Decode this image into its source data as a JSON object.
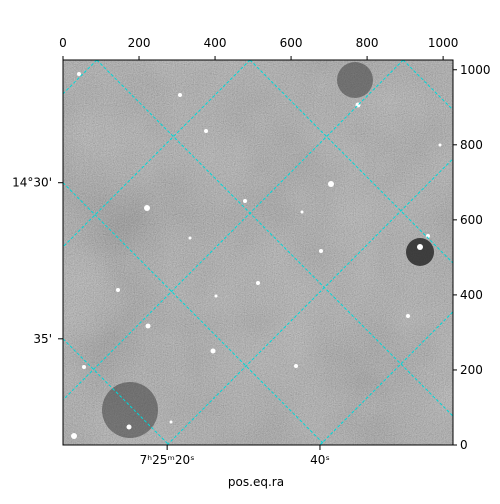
{
  "chart_data": {
    "type": "image",
    "xlabel": "pos.eq.ra",
    "xlim": [
      0,
      1026
    ],
    "ylim": [
      0,
      1026
    ],
    "xticks": [
      0,
      200,
      400,
      600,
      800,
      1000
    ],
    "yticks": [
      0,
      200,
      400,
      600,
      800,
      1000
    ],
    "grid_color": "#00d8d8",
    "ra_ticks": [
      {
        "value": 274,
        "label": "7ʰ25ᵐ20ˢ"
      },
      {
        "value": 676,
        "label": "40ˢ"
      }
    ],
    "dec_ticks": [
      {
        "value": 699,
        "label": "14°30'"
      },
      {
        "value": 283,
        "label": "35'"
      }
    ],
    "grid_lines": [
      [
        89,
        1026,
        1026,
        77
      ],
      [
        492,
        1026,
        1026,
        485
      ],
      [
        895,
        1026,
        1026,
        893
      ],
      [
        0,
        699,
        689,
        0
      ],
      [
        0,
        283,
        279,
        0
      ],
      [
        89,
        1026,
        0,
        936
      ],
      [
        492,
        1026,
        0,
        528
      ],
      [
        895,
        1026,
        0,
        120
      ],
      [
        274,
        0,
        1026,
        763
      ],
      [
        676,
        0,
        1026,
        355
      ]
    ]
  }
}
